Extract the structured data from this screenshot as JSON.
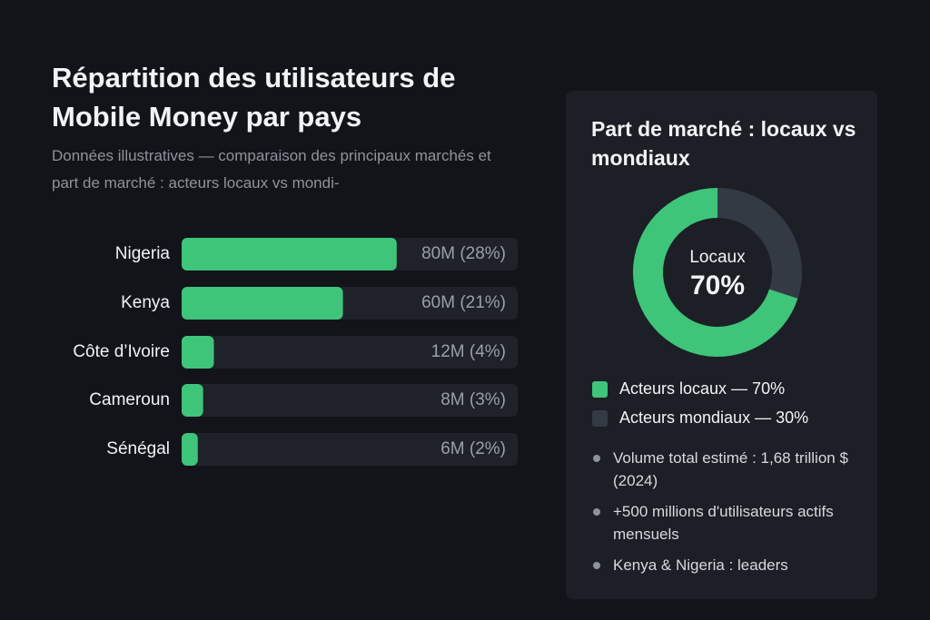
{
  "title": "Répartition des utilisateurs de Mobile Money par pays",
  "subtitle": "Données illustratives — comparaison des principaux marchés et part de marché : acteurs locaux vs mondi-",
  "chart_data": [
    {
      "type": "bar",
      "orientation": "horizontal",
      "categories": [
        "Nigeria",
        "Kenya",
        "Côte d’Ivoire",
        "Cameroun",
        "Sénégal"
      ],
      "values": [
        80,
        60,
        12,
        8,
        6
      ],
      "value_labels": [
        "80M (28%)",
        "60M (21%)",
        "12M (4%)",
        "8M (3%)",
        "6M (2%)"
      ],
      "xlim": [
        0,
        125
      ],
      "color": "#3ec57a",
      "track_color": "#1f2229"
    },
    {
      "type": "donut",
      "title": "Part de marché : locaux vs mondiaux",
      "categories": [
        "Acteurs locaux",
        "Acteurs mondiaux"
      ],
      "values": [
        70,
        30
      ],
      "value_labels": [
        "70%",
        "30%"
      ],
      "legend_labels": [
        "Acteurs locaux — 70%",
        "Acteurs mondiaux — 30%"
      ],
      "colors": [
        "#3ec57a",
        "#343a44"
      ],
      "center_label": "Locaux"
    }
  ],
  "notes": [
    "Volume total estimé : 1,68 trillion $ (2024)",
    "+500 millions d'utilisateurs actifs mensuels",
    "Kenya & Nigeria :  leaders"
  ]
}
